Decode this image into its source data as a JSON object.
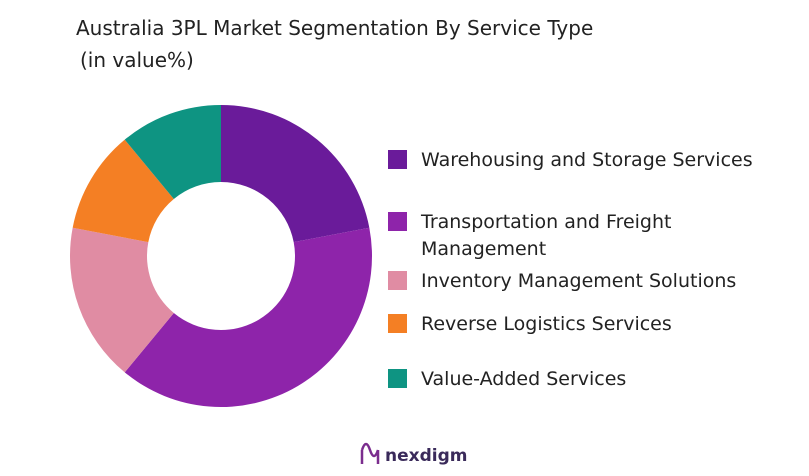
{
  "chart_data": {
    "type": "pie",
    "title": "Australia 3PL Market Segmentation By Service Type",
    "subtitle": "(in value%)",
    "categories": [
      "Warehousing and Storage Services",
      "Transportation and Freight Management",
      "Inventory Management Solutions",
      "Reverse Logistics Services",
      "Value-Added Services"
    ],
    "values": [
      22,
      39,
      17,
      11,
      11
    ],
    "colors": [
      "#6a1b9a",
      "#8e24aa",
      "#e08ca3",
      "#f47f24",
      "#0e9482"
    ],
    "donut": true
  },
  "brand": "nexdigm"
}
